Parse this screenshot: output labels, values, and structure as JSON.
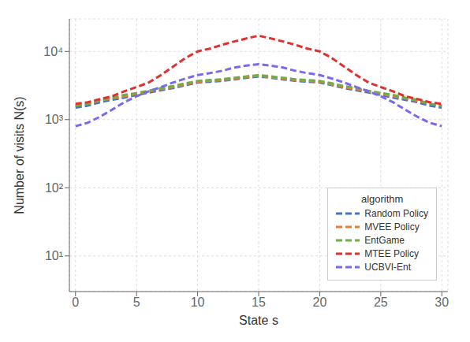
{
  "chart_data": {
    "type": "line",
    "xlabel": "State s",
    "ylabel": "Number of visits N(s)",
    "x": [
      0,
      1,
      2,
      3,
      4,
      5,
      6,
      7,
      8,
      9,
      10,
      11,
      12,
      13,
      14,
      15,
      16,
      17,
      18,
      19,
      20,
      21,
      22,
      23,
      24,
      25,
      26,
      27,
      28,
      29,
      30
    ],
    "series": [
      {
        "name": "Random Policy",
        "color": "#4472C4",
        "values": [
          1500,
          1600,
          1800,
          1950,
          2100,
          2300,
          2500,
          2700,
          2900,
          3200,
          3500,
          3600,
          3700,
          3900,
          4100,
          4300,
          4100,
          3900,
          3700,
          3600,
          3500,
          3200,
          2900,
          2700,
          2500,
          2300,
          2100,
          1950,
          1800,
          1600,
          1500
        ]
      },
      {
        "name": "MVEE Policy",
        "color": "#ED7D31",
        "values": [
          1600,
          1700,
          1900,
          2050,
          2200,
          2400,
          2600,
          2800,
          3000,
          3300,
          3600,
          3700,
          3800,
          4000,
          4200,
          4400,
          4200,
          4000,
          3800,
          3700,
          3600,
          3300,
          3000,
          2800,
          2600,
          2400,
          2200,
          2050,
          1900,
          1700,
          1600
        ]
      },
      {
        "name": "EntGame",
        "color": "#70AD47",
        "values": [
          1600,
          1700,
          1950,
          2100,
          2300,
          2450,
          2650,
          2900,
          3100,
          3400,
          3700,
          3800,
          3900,
          4100,
          4300,
          4500,
          4300,
          4100,
          3900,
          3800,
          3700,
          3400,
          3100,
          2900,
          2650,
          2450,
          2300,
          2100,
          1950,
          1700,
          1600
        ]
      },
      {
        "name": "MTEE Policy",
        "color": "#E03030",
        "values": [
          1700,
          1800,
          2000,
          2200,
          2600,
          3000,
          3500,
          4500,
          6000,
          8000,
          10000,
          11000,
          12500,
          14000,
          15500,
          17000,
          15500,
          14000,
          12500,
          11000,
          10000,
          8000,
          6000,
          4500,
          3500,
          3000,
          2600,
          2200,
          2000,
          1800,
          1700
        ]
      },
      {
        "name": "UCBVI-Ent",
        "color": "#7B68EE",
        "values": [
          800,
          900,
          1100,
          1400,
          1800,
          2200,
          2600,
          3000,
          3500,
          4000,
          4500,
          4800,
          5200,
          5800,
          6200,
          6500,
          6200,
          5800,
          5200,
          4800,
          4500,
          4000,
          3500,
          3000,
          2600,
          2200,
          1800,
          1400,
          1100,
          900,
          800
        ]
      }
    ],
    "xlim": [
      -0.5,
      30.5
    ],
    "ylim": [
      3,
      30000
    ],
    "xticks": [
      0,
      5,
      10,
      15,
      20,
      25,
      30
    ],
    "yticks": [
      {
        "value": 10,
        "label": "10¹"
      },
      {
        "value": 100,
        "label": "10²"
      },
      {
        "value": 1000,
        "label": "10³"
      },
      {
        "value": 10000,
        "label": "10⁴"
      }
    ],
    "log": "y",
    "grid": true,
    "legend": "lower right",
    "legend_title": "algorithm",
    "line_style": "dashed",
    "marker": "none"
  }
}
